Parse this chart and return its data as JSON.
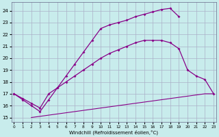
{
  "xlabel": "Windchill (Refroidissement éolien,°C)",
  "background_color": "#c8ecec",
  "grid_color": "#aab0c8",
  "line_color": "#880088",
  "xlim": [
    -0.3,
    23.3
  ],
  "ylim": [
    14.6,
    24.7
  ],
  "yticks": [
    15,
    16,
    17,
    18,
    19,
    20,
    21,
    22,
    23,
    24
  ],
  "xticks": [
    0,
    1,
    2,
    3,
    4,
    5,
    6,
    7,
    8,
    9,
    10,
    11,
    12,
    13,
    14,
    15,
    16,
    17,
    18,
    19,
    20,
    21,
    22,
    23
  ],
  "line1_x": [
    0,
    1,
    2,
    3,
    4,
    5,
    6,
    7,
    8,
    9,
    10,
    11,
    12,
    13,
    14,
    15,
    16,
    17,
    18,
    19
  ],
  "line1_y": [
    17.0,
    16.5,
    16.0,
    15.5,
    16.5,
    17.5,
    18.5,
    19.5,
    20.5,
    21.5,
    22.5,
    22.8,
    23.0,
    23.2,
    23.5,
    23.7,
    23.9,
    24.1,
    24.2,
    23.5
  ],
  "line2_x": [
    0,
    1,
    2,
    3,
    4,
    5,
    6,
    7,
    8,
    9,
    10,
    11,
    12,
    13,
    14,
    15,
    16,
    17,
    18,
    19,
    20,
    21,
    22,
    23
  ],
  "line2_y": [
    17.0,
    16.6,
    16.2,
    15.8,
    17.0,
    17.5,
    18.0,
    18.5,
    19.0,
    19.5,
    20.0,
    20.4,
    20.7,
    21.0,
    21.3,
    21.5,
    21.5,
    21.5,
    21.3,
    20.8,
    19.0,
    18.5,
    18.2,
    17.0
  ],
  "line3_x": [
    2,
    3,
    4,
    5,
    6,
    7,
    8,
    9,
    10,
    11,
    12,
    13,
    14,
    15,
    16,
    17,
    18,
    19,
    20,
    21,
    22,
    23
  ],
  "line3_y": [
    15.0,
    15.1,
    15.2,
    15.3,
    15.4,
    15.5,
    15.6,
    15.7,
    15.8,
    15.9,
    16.0,
    16.1,
    16.2,
    16.3,
    16.4,
    16.5,
    16.6,
    16.7,
    16.8,
    16.9,
    17.0,
    17.0
  ]
}
